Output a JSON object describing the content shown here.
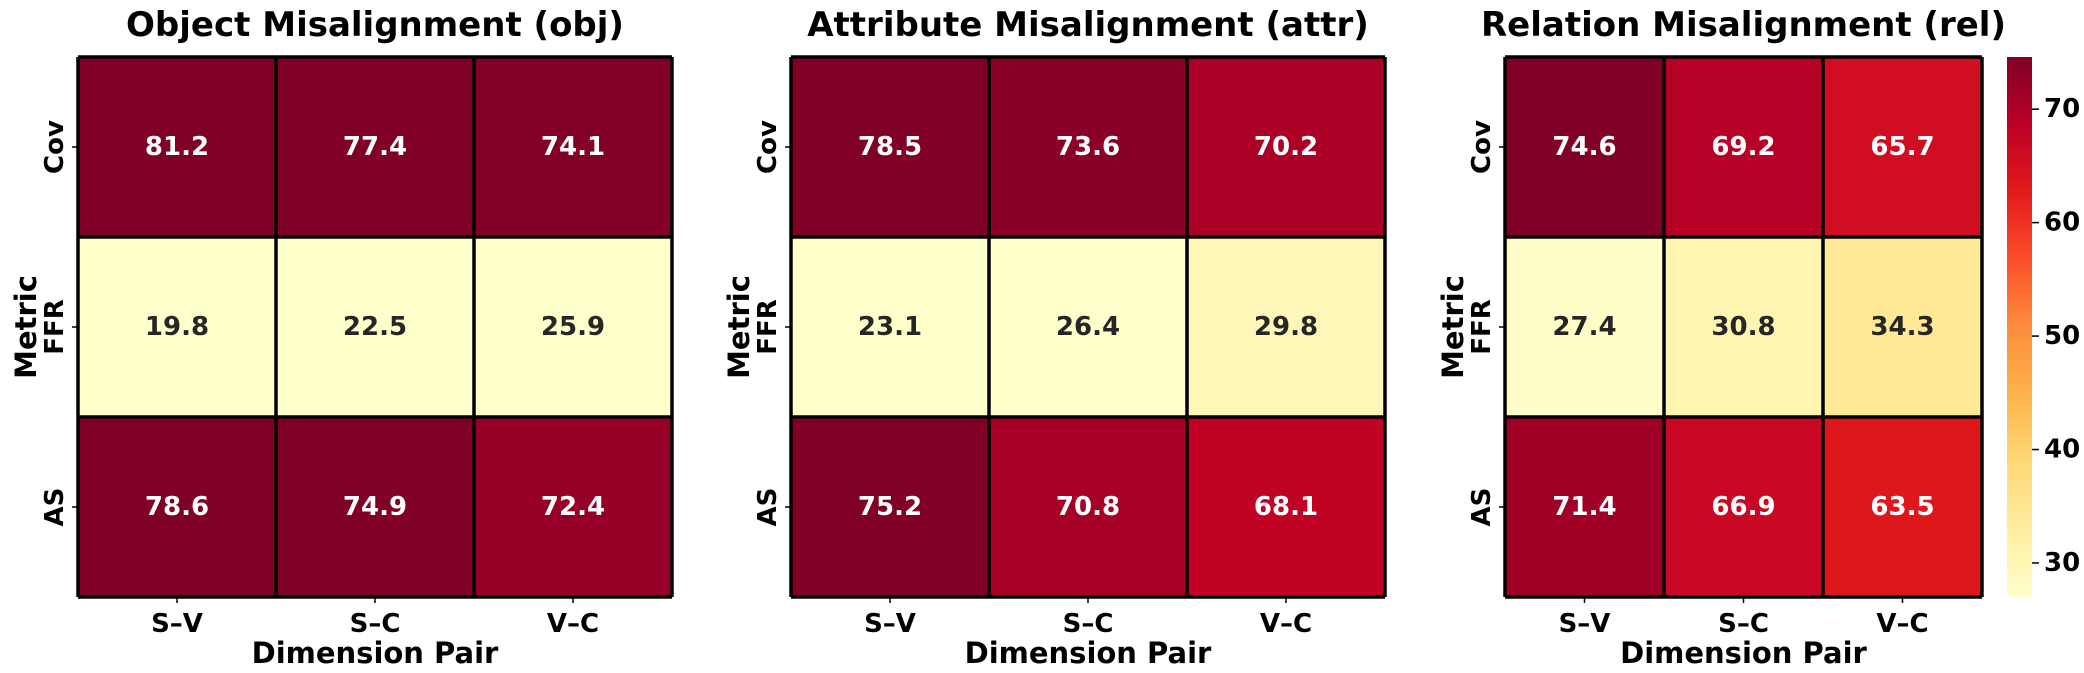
{
  "colormap": {
    "name": "YlOrRd",
    "vmin": 27,
    "vmax": 74.6,
    "stops": [
      "#ffffcc",
      "#ffeda0",
      "#fed976",
      "#feb24c",
      "#fd8d3c",
      "#fc4e2a",
      "#e31a1c",
      "#bd0026",
      "#800026"
    ]
  },
  "text_colors": {
    "dark": "#262626",
    "light": "#ffffff",
    "threshold": 50
  },
  "colorbar": {
    "ticks": [
      30,
      40,
      50,
      60,
      70
    ]
  },
  "chart_data": [
    {
      "type": "heatmap",
      "title": "Object Misalignment (obj)",
      "xlabel": "Dimension Pair",
      "ylabel": "Metric",
      "x": [
        "S–V",
        "S–C",
        "V–C"
      ],
      "y": [
        "Cov",
        "FFR",
        "AS"
      ],
      "values": [
        [
          81.2,
          77.4,
          74.1
        ],
        [
          19.8,
          22.5,
          25.9
        ],
        [
          78.6,
          74.9,
          72.4
        ]
      ],
      "cell_labels": [
        [
          "81.2",
          "77.4",
          "74.1"
        ],
        [
          "19.8",
          "22.5",
          "25.9"
        ],
        [
          "78.6",
          "74.9",
          "72.4"
        ]
      ]
    },
    {
      "type": "heatmap",
      "title": "Attribute Misalignment (attr)",
      "xlabel": "Dimension Pair",
      "ylabel": "Metric",
      "x": [
        "S–V",
        "S–C",
        "V–C"
      ],
      "y": [
        "Cov",
        "FFR",
        "AS"
      ],
      "values": [
        [
          78.5,
          73.6,
          70.2
        ],
        [
          23.1,
          26.4,
          29.8
        ],
        [
          75.2,
          70.8,
          68.1
        ]
      ],
      "cell_labels": [
        [
          "78.5",
          "73.6",
          "70.2"
        ],
        [
          "23.1",
          "26.4",
          "29.8"
        ],
        [
          "75.2",
          "70.8",
          "68.1"
        ]
      ]
    },
    {
      "type": "heatmap",
      "title": "Relation Misalignment (rel)",
      "xlabel": "Dimension Pair",
      "ylabel": "Metric",
      "x": [
        "S–V",
        "S–C",
        "V–C"
      ],
      "y": [
        "Cov",
        "FFR",
        "AS"
      ],
      "values": [
        [
          74.6,
          69.2,
          65.7
        ],
        [
          27.4,
          30.8,
          34.3
        ],
        [
          71.4,
          66.9,
          63.5
        ]
      ],
      "cell_labels": [
        [
          "74.6",
          "69.2",
          "65.7"
        ],
        [
          "27.4",
          "30.8",
          "34.3"
        ],
        [
          "71.4",
          "66.9",
          "63.5"
        ]
      ]
    }
  ]
}
